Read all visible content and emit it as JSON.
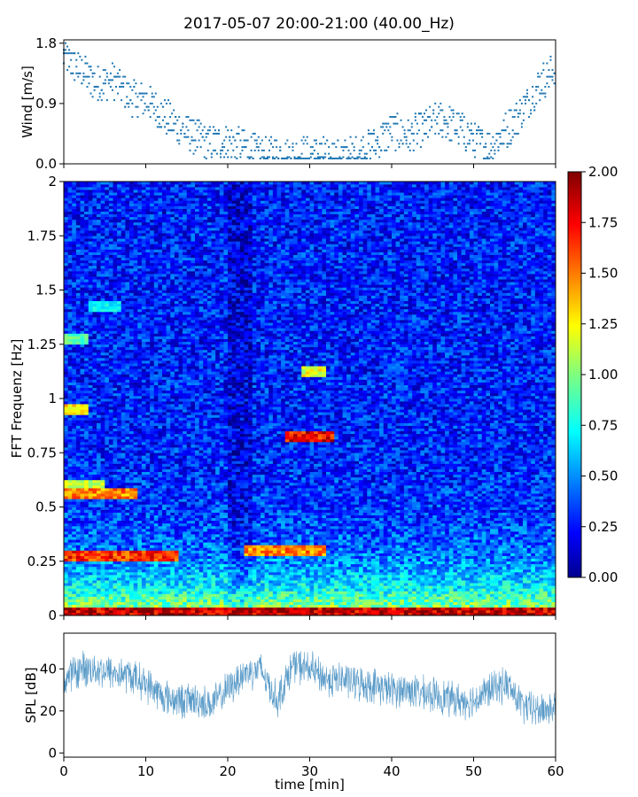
{
  "title": "2017-05-07 20:00-21:00 (40.00_Hz)",
  "chart_data": [
    {
      "panel": "wind",
      "type": "scatter",
      "ylabel": "Wind [m/s]",
      "xlim": [
        0,
        60
      ],
      "ylim": [
        0.0,
        1.85
      ],
      "yticks": [
        0.0,
        0.9,
        1.8
      ],
      "ytick_labels": [
        "0.0",
        "0.9",
        "1.8"
      ],
      "color": "#1f77b4",
      "series": [
        {
          "name": "wind",
          "x": [
            0,
            2,
            4,
            6,
            8,
            10,
            12,
            14,
            16,
            18,
            20,
            22,
            24,
            26,
            28,
            30,
            32,
            34,
            36,
            38,
            40,
            42,
            44,
            46,
            48,
            50,
            52,
            54,
            56,
            58,
            60
          ],
          "values": [
            1.6,
            1.4,
            1.2,
            1.25,
            1.0,
            0.95,
            0.75,
            0.55,
            0.4,
            0.3,
            0.35,
            0.25,
            0.12,
            0.15,
            0.12,
            0.15,
            0.12,
            0.12,
            0.15,
            0.3,
            0.5,
            0.4,
            0.55,
            0.65,
            0.55,
            0.35,
            0.25,
            0.5,
            0.8,
            1.2,
            1.4
          ]
        }
      ]
    },
    {
      "panel": "spectrogram",
      "type": "heatmap",
      "ylabel": "FFT Frequenz [Hz]",
      "xlim": [
        0,
        60
      ],
      "ylim": [
        0,
        2
      ],
      "yticks": [
        0,
        0.25,
        0.5,
        0.75,
        1,
        1.25,
        1.5,
        1.75,
        2
      ],
      "ytick_labels": [
        "0",
        "0.25",
        "0.5",
        "0.75",
        "1",
        "1.25",
        "1.5",
        "1.75",
        "2"
      ],
      "colormap": "jet",
      "clim": [
        0.0,
        2.0
      ],
      "colorbar_ticks": [
        "0.00",
        "0.25",
        "0.50",
        "0.75",
        "1.00",
        "1.25",
        "1.50",
        "1.75",
        "2.00"
      ],
      "background_level": 0.3,
      "features": [
        {
          "x": [
            0,
            3
          ],
          "freq": 0.95,
          "level": 1.4
        },
        {
          "x": [
            0,
            3
          ],
          "freq": 1.27,
          "level": 1.0
        },
        {
          "x": [
            3,
            7
          ],
          "freq": 1.43,
          "level": 0.8
        },
        {
          "x": [
            0,
            9
          ],
          "freq": 0.56,
          "level": 1.6
        },
        {
          "x": [
            0,
            5
          ],
          "freq": 0.6,
          "level": 1.2
        },
        {
          "x": [
            0,
            14
          ],
          "freq": 0.27,
          "level": 1.8
        },
        {
          "x": [
            22,
            32
          ],
          "freq": 0.3,
          "level": 1.6
        },
        {
          "x": [
            27,
            33
          ],
          "freq": 0.82,
          "level": 1.9
        },
        {
          "x": [
            29,
            32
          ],
          "freq": 1.12,
          "level": 1.3
        },
        {
          "x": [
            0,
            60
          ],
          "freq": 0.01,
          "level": 2.0
        }
      ]
    },
    {
      "panel": "spl",
      "type": "line",
      "ylabel": "SPL [dB]",
      "xlabel": "time [min]",
      "xlim": [
        0,
        60
      ],
      "xticks": [
        0,
        10,
        20,
        30,
        40,
        50,
        60
      ],
      "xtick_labels": [
        "0",
        "10",
        "20",
        "30",
        "40",
        "50",
        "60"
      ],
      "ylim": [
        -2,
        57
      ],
      "yticks": [
        0,
        20,
        40
      ],
      "ytick_labels": [
        "0",
        "20",
        "40"
      ],
      "color": "#1f77b4",
      "series": [
        {
          "name": "SPL",
          "x": [
            0,
            2,
            4,
            6,
            8,
            10,
            12,
            14,
            16,
            18,
            20,
            22,
            24,
            26,
            28,
            30,
            32,
            34,
            36,
            38,
            40,
            42,
            44,
            46,
            48,
            50,
            52,
            54,
            56,
            58,
            60
          ],
          "values": [
            35,
            40,
            40,
            38,
            37,
            33,
            27,
            25,
            25,
            23,
            30,
            38,
            40,
            25,
            42,
            40,
            35,
            35,
            33,
            32,
            30,
            30,
            28,
            27,
            25,
            25,
            30,
            33,
            22,
            20,
            22
          ]
        }
      ]
    }
  ]
}
